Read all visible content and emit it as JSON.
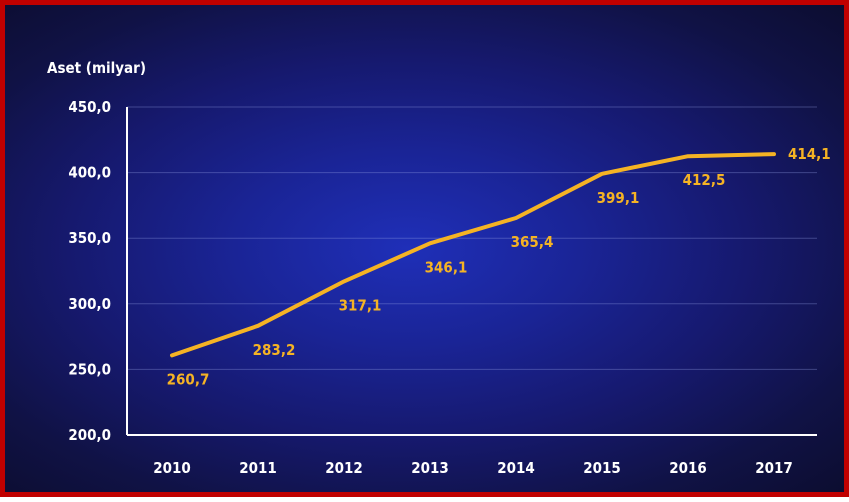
{
  "chart_data": {
    "type": "line",
    "ylabel": "Aset  (milyar)",
    "categories": [
      "2010",
      "2011",
      "2012",
      "2013",
      "2014",
      "2015",
      "2016",
      "2017"
    ],
    "series": [
      {
        "values": [
          260.7,
          283.2,
          317.1,
          346.1,
          365.4,
          399.1,
          412.5,
          414.1
        ],
        "labels": [
          "260,7",
          "283,2",
          "317,1",
          "346,1",
          "365,4",
          "399,1",
          "412,5",
          "414,1"
        ],
        "color": "#f5b324"
      }
    ],
    "yticks": [
      "200,0",
      "250,0",
      "300,0",
      "350,0",
      "400,0",
      "450,0"
    ],
    "ylim": [
      200,
      450
    ],
    "grid": true
  },
  "colors": {
    "border": "#c00000",
    "line": "#f5b324",
    "text": "#ffffff"
  }
}
